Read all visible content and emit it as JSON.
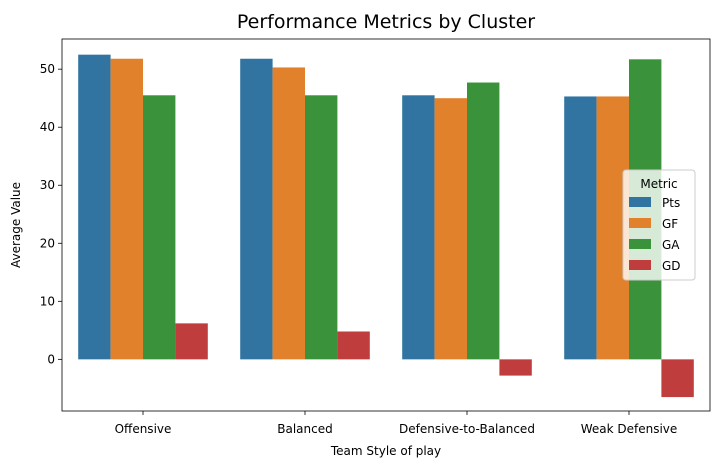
{
  "chart_data": {
    "type": "bar",
    "title": "Performance Metrics by Cluster",
    "xlabel": "Team Style of play",
    "ylabel": "Average Value",
    "categories": [
      "Offensive",
      "Balanced",
      "Defensive-to-Balanced",
      "Weak Defensive"
    ],
    "series": [
      {
        "name": "Pts",
        "color": "#3274a1",
        "values": [
          52.5,
          51.8,
          45.5,
          45.3
        ]
      },
      {
        "name": "GF",
        "color": "#e1812c",
        "values": [
          51.8,
          50.3,
          45.0,
          45.3
        ]
      },
      {
        "name": "GA",
        "color": "#3a923a",
        "values": [
          45.5,
          45.5,
          47.7,
          51.7
        ]
      },
      {
        "name": "GD",
        "color": "#c03d3e",
        "values": [
          6.2,
          4.8,
          -2.8,
          -6.5
        ]
      }
    ],
    "ylim": [
      -8.9,
      55.2
    ],
    "yticks": [
      0,
      10,
      20,
      30,
      40,
      50
    ],
    "legend": {
      "title": "Metric",
      "position": "center-right"
    },
    "grid": false
  }
}
